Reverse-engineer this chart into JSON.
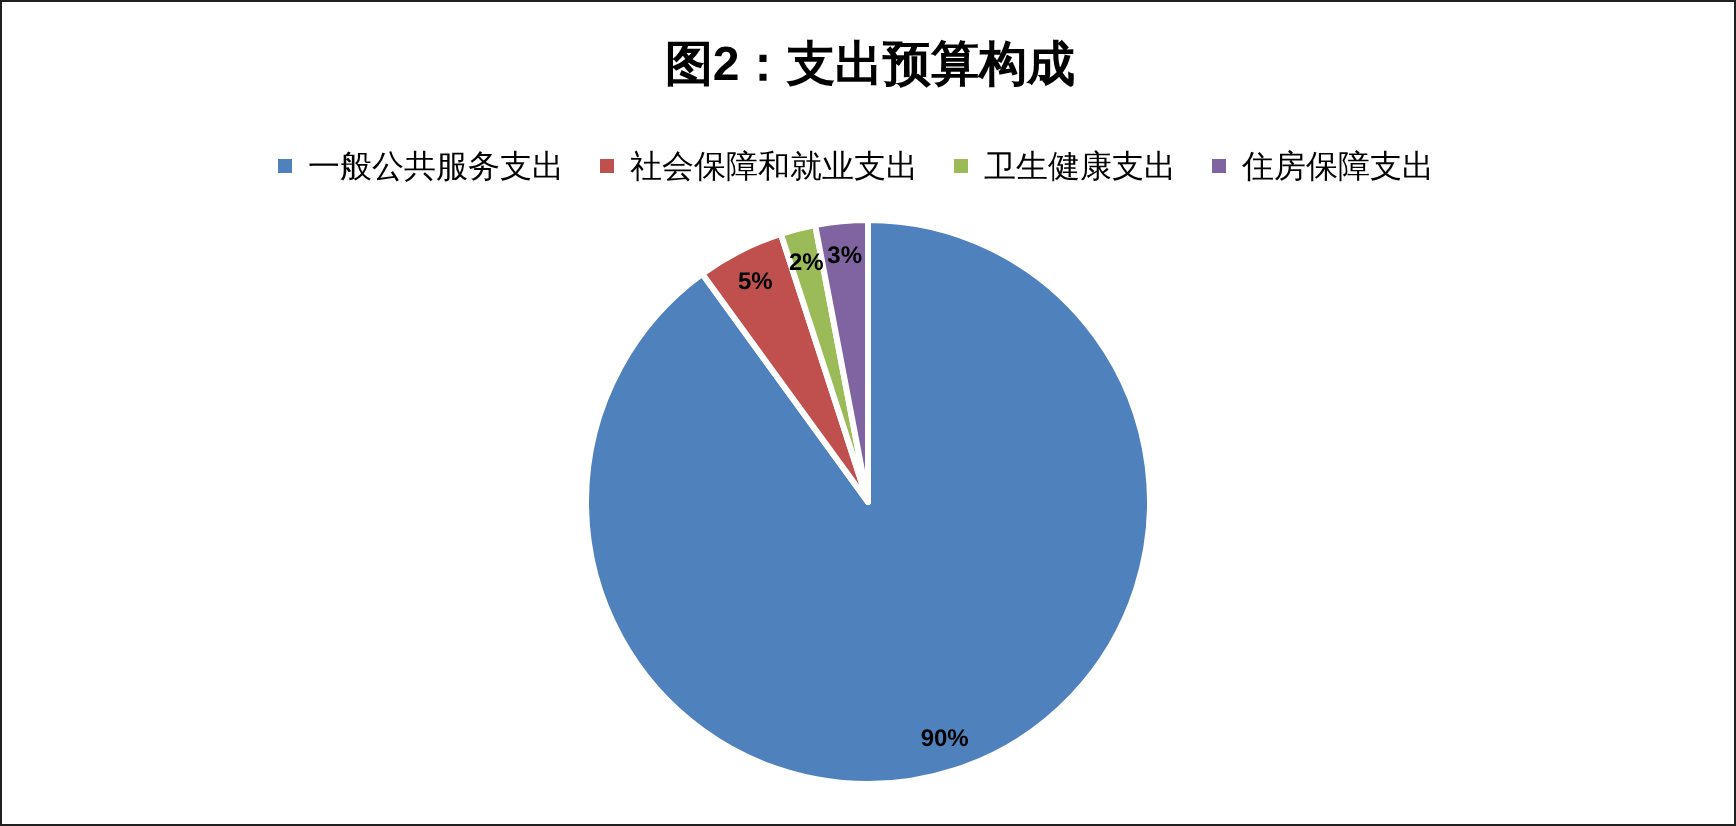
{
  "chart_data": {
    "type": "pie",
    "title": "图2：支出预算构成",
    "categories": [
      "一般公共服务支出",
      "社会保障和就业支出",
      "卫生健康支出",
      "住房保障支出"
    ],
    "values": [
      90,
      5,
      2,
      3
    ],
    "colors": [
      "#4f81bd",
      "#c0504d",
      "#9bbb59",
      "#8064a2"
    ],
    "value_labels": [
      "90%",
      "5%",
      "2%",
      "3%"
    ],
    "legend": "top"
  }
}
